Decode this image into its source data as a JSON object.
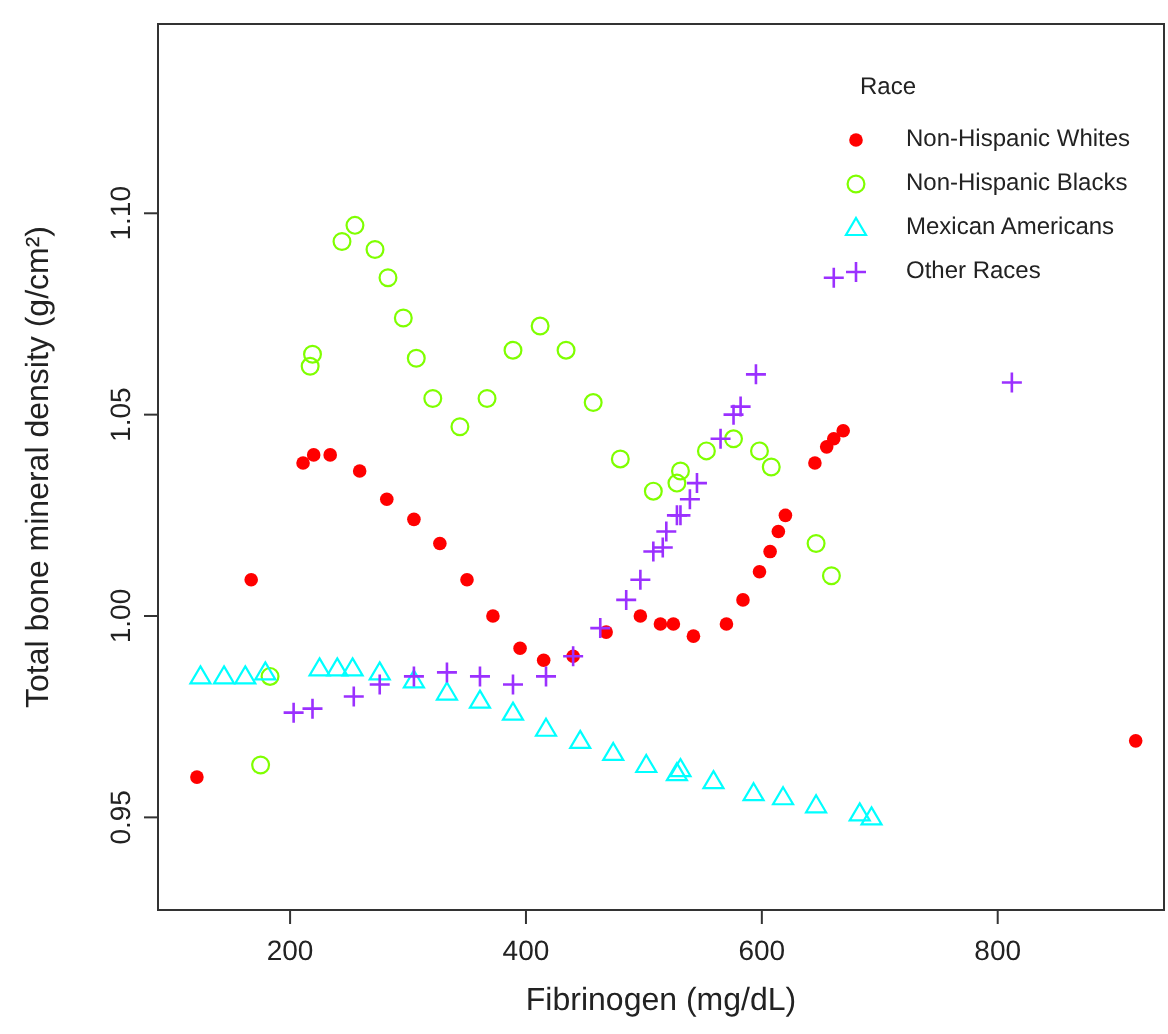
{
  "chart_data": {
    "type": "scatter",
    "xlabel": "Fibrinogen (mg/dL)",
    "ylabel": "Total bone mineral density (g/cm²)",
    "legend_title": "Race",
    "legend": "top right",
    "grid": false,
    "xlim": [
      88,
      941
    ],
    "xticks": [
      200,
      400,
      600,
      800
    ],
    "ylim": [
      0.927,
      1.147
    ],
    "yticks": [
      {
        "value": 0.95,
        "label": "0.95"
      },
      {
        "value": 1.0,
        "label": "1.00"
      },
      {
        "value": 1.05,
        "label": "1.05"
      },
      {
        "value": 1.1,
        "label": "1.10"
      }
    ],
    "series": [
      {
        "name": "Non-Hispanic Whites",
        "color": "#ff0000",
        "marker": "circle",
        "x": [
          121,
          167,
          211,
          220,
          234,
          259,
          282,
          305,
          327,
          350,
          372,
          395,
          415,
          440,
          468,
          497,
          514,
          525,
          542,
          570,
          584,
          598,
          607,
          614,
          620,
          645,
          655,
          661,
          669,
          917
        ],
        "values": [
          0.96,
          1.009,
          1.038,
          1.04,
          1.04,
          1.036,
          1.029,
          1.024,
          1.018,
          1.009,
          1.0,
          0.992,
          0.989,
          0.99,
          0.996,
          1.0,
          0.998,
          0.998,
          0.995,
          0.998,
          1.004,
          1.011,
          1.016,
          1.021,
          1.025,
          1.038,
          1.042,
          1.044,
          1.046,
          0.969
        ]
      },
      {
        "name": "Non-Hispanic Blacks",
        "color": "#7fff00",
        "marker": "circle-open",
        "x": [
          175,
          183,
          217,
          219,
          244,
          255,
          272,
          283,
          296,
          307,
          321,
          344,
          367,
          389,
          412,
          434,
          457,
          480,
          508,
          528,
          531,
          553,
          576,
          598,
          608,
          646,
          659
        ],
        "values": [
          0.963,
          0.985,
          1.062,
          1.065,
          1.093,
          1.097,
          1.091,
          1.084,
          1.074,
          1.064,
          1.054,
          1.047,
          1.054,
          1.066,
          1.072,
          1.066,
          1.053,
          1.039,
          1.031,
          1.033,
          1.036,
          1.041,
          1.044,
          1.041,
          1.037,
          1.018,
          1.01
        ]
      },
      {
        "name": "Mexican Americans",
        "color": "#00ffff",
        "marker": "triangle",
        "x": [
          124,
          144,
          162,
          179,
          225,
          240,
          253,
          276,
          305,
          333,
          361,
          389,
          417,
          446,
          474,
          502,
          528,
          531,
          559,
          593,
          618,
          646,
          683,
          693
        ],
        "values": [
          0.985,
          0.985,
          0.985,
          0.986,
          0.987,
          0.987,
          0.987,
          0.986,
          0.984,
          0.981,
          0.979,
          0.976,
          0.972,
          0.969,
          0.966,
          0.963,
          0.961,
          0.962,
          0.959,
          0.956,
          0.955,
          0.953,
          0.951,
          0.95
        ]
      },
      {
        "name": "Other Races",
        "color": "#9b30ff",
        "marker": "cross",
        "x": [
          203,
          219,
          254,
          276,
          305,
          333,
          361,
          389,
          417,
          440,
          463,
          485,
          497,
          508,
          516,
          519,
          528,
          531,
          539,
          545,
          565,
          576,
          582,
          595,
          661,
          812
        ],
        "values": [
          0.976,
          0.977,
          0.98,
          0.983,
          0.985,
          0.986,
          0.985,
          0.983,
          0.985,
          0.99,
          0.997,
          1.004,
          1.009,
          1.016,
          1.017,
          1.021,
          1.025,
          1.025,
          1.029,
          1.033,
          1.044,
          1.05,
          1.052,
          1.06,
          1.084,
          1.058
        ]
      }
    ]
  }
}
